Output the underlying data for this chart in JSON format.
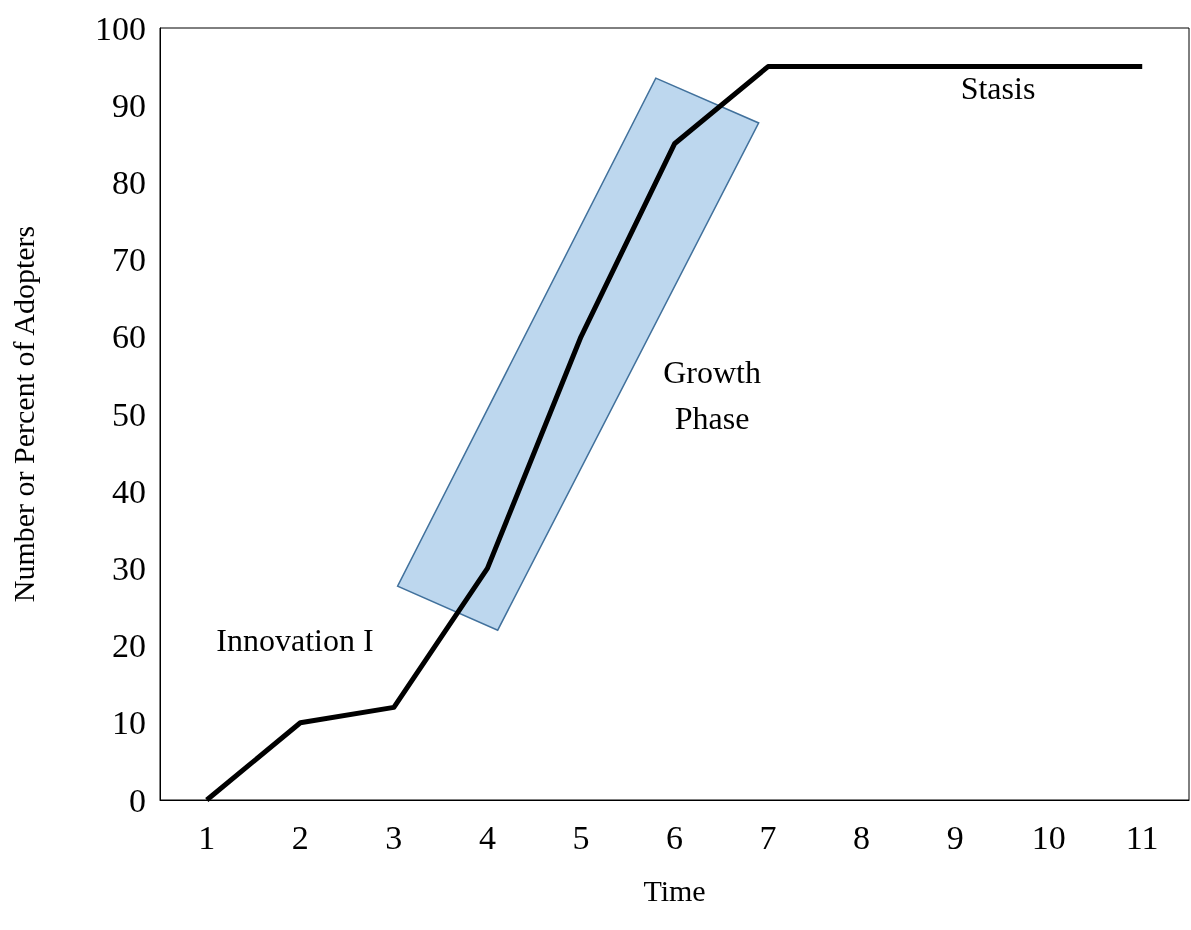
{
  "chart_data": {
    "type": "line",
    "xlabel": "Time",
    "ylabel": "Number or Percent of Adopters",
    "categories": [
      "1",
      "2",
      "3",
      "4",
      "5",
      "6",
      "7",
      "8",
      "9",
      "10",
      "11"
    ],
    "series": [
      {
        "color": "#000000",
        "values": [
          0,
          10,
          12,
          30,
          60,
          85,
          95,
          95,
          95,
          95,
          95
        ]
      }
    ],
    "ylim": [
      0,
      100
    ],
    "yticks": [
      0,
      10,
      20,
      30,
      40,
      50,
      60,
      70,
      80,
      90,
      100
    ],
    "grid": false,
    "marker": "none",
    "line_style": "solid",
    "annotations": [
      "Innovation I",
      "Growth\nPhase",
      "Stasis"
    ]
  }
}
